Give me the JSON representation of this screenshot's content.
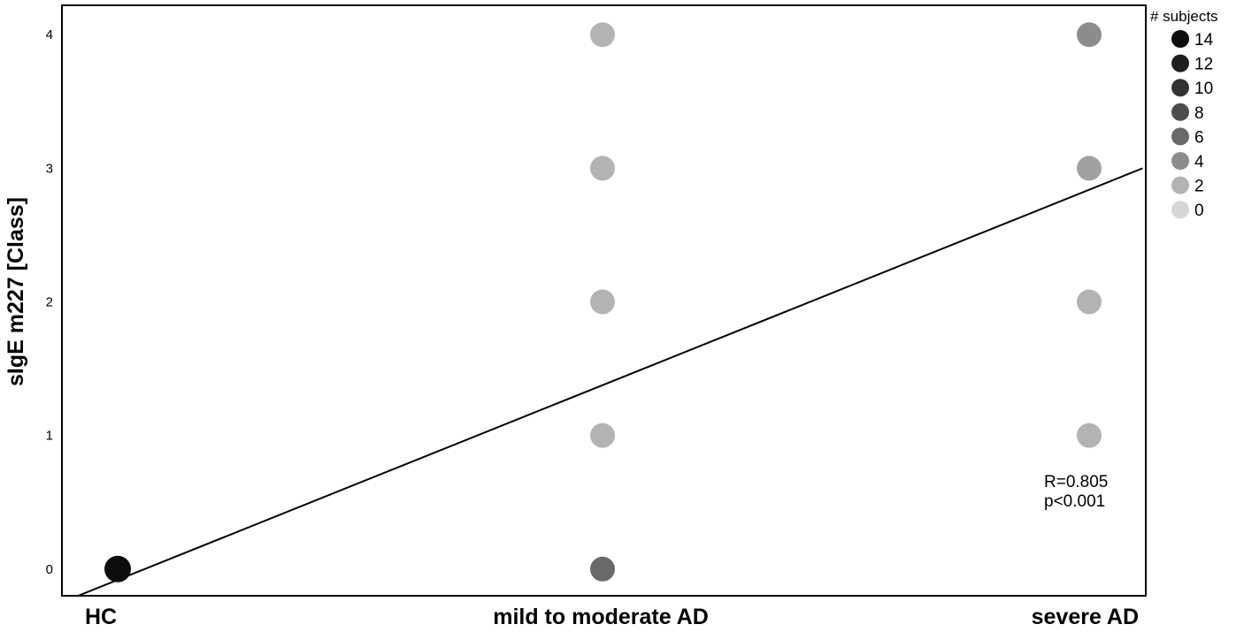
{
  "chart_data": {
    "type": "scatter",
    "ylabel": "sIgE m227 [Class]",
    "xlabel": "",
    "categories": [
      "HC",
      "mild to moderate AD",
      "severe AD"
    ],
    "y_ticks": [
      "0",
      "1",
      "2",
      "3",
      "4"
    ],
    "ylim": [
      -0.2,
      4.22
    ],
    "points": [
      {
        "category": "HC",
        "y": 0,
        "subjects": 14
      },
      {
        "category": "mild to moderate AD",
        "y": 0,
        "subjects": 6
      },
      {
        "category": "mild to moderate AD",
        "y": 1,
        "subjects": 2
      },
      {
        "category": "mild to moderate AD",
        "y": 2,
        "subjects": 2
      },
      {
        "category": "mild to moderate AD",
        "y": 3,
        "subjects": 2
      },
      {
        "category": "mild to moderate AD",
        "y": 4,
        "subjects": 2
      },
      {
        "category": "severe AD",
        "y": 1,
        "subjects": 2
      },
      {
        "category": "severe AD",
        "y": 2,
        "subjects": 2
      },
      {
        "category": "severe AD",
        "y": 3,
        "subjects": 3
      },
      {
        "category": "severe AD",
        "y": 4,
        "subjects": 4
      }
    ],
    "regression_line": {
      "x_start": -0.095,
      "y_start": -0.22,
      "x_end": 2.11,
      "y_end": 3.0
    },
    "legend": {
      "title": "# subjects",
      "placement": "top-right-outside",
      "entries": [
        {
          "label": "14",
          "color": "#0d0d0d"
        },
        {
          "label": "12",
          "color": "#1e1e1e"
        },
        {
          "label": "10",
          "color": "#333333"
        },
        {
          "label": "8",
          "color": "#4d4d4d"
        },
        {
          "label": "6",
          "color": "#696969"
        },
        {
          "label": "4",
          "color": "#8c8c8c"
        },
        {
          "label": "2",
          "color": "#b3b3b3"
        },
        {
          "label": "0",
          "color": "#d6d6d6"
        }
      ]
    },
    "annotations": [
      "R=0.805",
      "p<0.001"
    ],
    "grid": false
  }
}
